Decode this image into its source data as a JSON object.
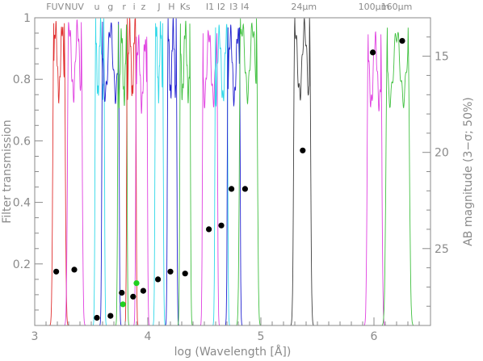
{
  "chart_data": {
    "type": "line",
    "title": "",
    "xlabel": "log (Wavelength [Å])",
    "ylabel_left": "Filter transmission",
    "ylabel_right": "AB magnitude (3−σ; 50%)",
    "xlim": [
      3.0,
      6.5
    ],
    "ylim_left": [
      0.0,
      1.0
    ],
    "ylim_right": [
      29.0,
      13.0
    ],
    "x_ticks": [
      3,
      4,
      5,
      6
    ],
    "x_tick_labels": [
      "3",
      "4",
      "5",
      "6"
    ],
    "y_left_ticks": [
      0.2,
      0.4,
      0.6,
      0.8,
      1.0
    ],
    "y_left_tick_labels": [
      "0.2",
      "0.4",
      "0.6",
      "0.8",
      "1"
    ],
    "y_right_ticks": [
      15,
      20,
      25
    ],
    "y_right_tick_labels": [
      "15",
      "20",
      "25"
    ],
    "grid": false,
    "filter_labels": [
      {
        "text": "FUV",
        "x": 3.18
      },
      {
        "text": "NUV",
        "x": 3.35
      },
      {
        "text": "u",
        "x": 3.55
      },
      {
        "text": "g",
        "x": 3.67
      },
      {
        "text": "r",
        "x": 3.79
      },
      {
        "text": "i",
        "x": 3.88
      },
      {
        "text": "z",
        "x": 3.96
      },
      {
        "text": "J",
        "x": 4.1
      },
      {
        "text": "H",
        "x": 4.21
      },
      {
        "text": "Ks",
        "x": 4.33
      },
      {
        "text": "I1",
        "x": 4.55
      },
      {
        "text": "I2",
        "x": 4.65
      },
      {
        "text": "I3",
        "x": 4.76
      },
      {
        "text": "I4",
        "x": 4.86
      },
      {
        "text": "24μm",
        "x": 5.38
      },
      {
        "text": "100μm",
        "x": 6.0
      },
      {
        "text": "160μm",
        "x": 6.2
      }
    ],
    "filters": [
      {
        "color": "#e03030",
        "lo": 3.17,
        "hi": 3.26,
        "peak": 1.0,
        "edge": 0.03
      },
      {
        "color": "#e040e0",
        "lo": 3.3,
        "hi": 3.41,
        "peak": 1.0,
        "edge": 0.03
      },
      {
        "color": "#30d8e8",
        "lo": 3.54,
        "hi": 3.61,
        "peak": 1.0,
        "edge": 0.02
      },
      {
        "color": "#2020d0",
        "lo": 3.6,
        "hi": 3.74,
        "peak": 1.0,
        "edge": 0.02
      },
      {
        "color": "#40c040",
        "lo": 3.74,
        "hi": 3.81,
        "peak": 0.98,
        "edge": 0.02
      },
      {
        "color": "#e03030",
        "lo": 3.82,
        "hi": 3.89,
        "peak": 1.0,
        "edge": 0.02
      },
      {
        "color": "#e040e0",
        "lo": 3.9,
        "hi": 3.99,
        "peak": 0.95,
        "edge": 0.02
      },
      {
        "color": "#30d8e8",
        "lo": 4.07,
        "hi": 4.13,
        "peak": 1.0,
        "edge": 0.02
      },
      {
        "color": "#2020d0",
        "lo": 4.18,
        "hi": 4.25,
        "peak": 1.0,
        "edge": 0.02
      },
      {
        "color": "#40c040",
        "lo": 4.29,
        "hi": 4.37,
        "peak": 1.0,
        "edge": 0.02
      },
      {
        "color": "#e040e0",
        "lo": 4.49,
        "hi": 4.61,
        "peak": 0.98,
        "edge": 0.02
      },
      {
        "color": "#30d8e8",
        "lo": 4.6,
        "hi": 4.7,
        "peak": 0.98,
        "edge": 0.02
      },
      {
        "color": "#2020d0",
        "lo": 4.71,
        "hi": 4.81,
        "peak": 0.98,
        "edge": 0.02
      },
      {
        "color": "#40c040",
        "lo": 4.82,
        "hi": 4.96,
        "peak": 1.0,
        "edge": 0.03
      },
      {
        "color": "#404040",
        "lo": 5.3,
        "hi": 5.43,
        "peak": 1.0,
        "edge": 0.03
      },
      {
        "color": "#e040e0",
        "lo": 5.95,
        "hi": 6.06,
        "peak": 0.96,
        "edge": 0.03
      },
      {
        "color": "#40c040",
        "lo": 6.12,
        "hi": 6.3,
        "peak": 0.98,
        "edge": 0.04
      }
    ],
    "points": [
      {
        "x": 3.19,
        "mag": 26.2,
        "color": "#000000"
      },
      {
        "x": 3.35,
        "mag": 26.1,
        "color": "#000000"
      },
      {
        "x": 3.55,
        "mag": 28.6,
        "color": "#000000"
      },
      {
        "x": 3.67,
        "mag": 28.5,
        "color": "#000000"
      },
      {
        "x": 3.77,
        "mag": 27.3,
        "color": "#000000"
      },
      {
        "x": 3.78,
        "mag": 27.9,
        "color": "#20d020"
      },
      {
        "x": 3.87,
        "mag": 27.5,
        "color": "#000000"
      },
      {
        "x": 3.9,
        "mag": 26.8,
        "color": "#20d020"
      },
      {
        "x": 3.96,
        "mag": 27.2,
        "color": "#000000"
      },
      {
        "x": 4.09,
        "mag": 26.6,
        "color": "#000000"
      },
      {
        "x": 4.2,
        "mag": 26.2,
        "color": "#000000"
      },
      {
        "x": 4.33,
        "mag": 26.3,
        "color": "#000000"
      },
      {
        "x": 4.54,
        "mag": 24.0,
        "color": "#000000"
      },
      {
        "x": 4.65,
        "mag": 23.8,
        "color": "#000000"
      },
      {
        "x": 4.74,
        "mag": 21.9,
        "color": "#000000"
      },
      {
        "x": 4.86,
        "mag": 21.9,
        "color": "#000000"
      },
      {
        "x": 5.37,
        "mag": 19.9,
        "color": "#000000"
      },
      {
        "x": 5.99,
        "mag": 14.8,
        "color": "#000000"
      },
      {
        "x": 6.25,
        "mag": 14.2,
        "color": "#000000"
      }
    ]
  }
}
